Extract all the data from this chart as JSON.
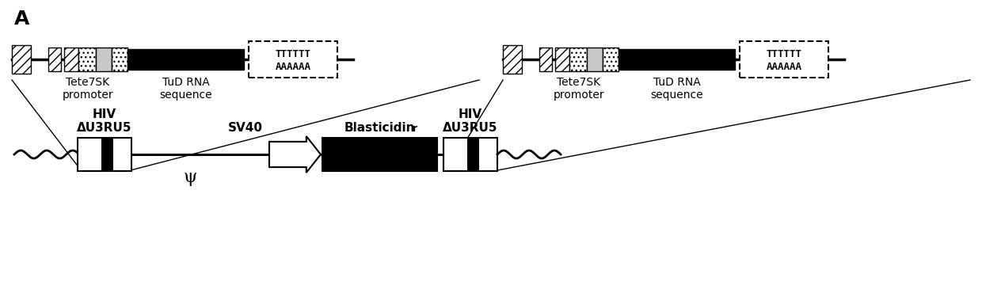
{
  "title_label": "A",
  "hiv_label": "HIV\nΔU3RU5",
  "sv40_label": "SV40",
  "blast_label": "Blasticidin",
  "blast_super": "r",
  "psi_label": "ψ",
  "promoter_label": "Tete7SK\npromoter",
  "tud_label": "TuD RNA\nsequence",
  "poly_top": "TTTTTT",
  "poly_bot": "AAAAAA",
  "bg_color": "#ffffff",
  "black": "#000000",
  "white": "#ffffff",
  "lgray": "#cccccc"
}
